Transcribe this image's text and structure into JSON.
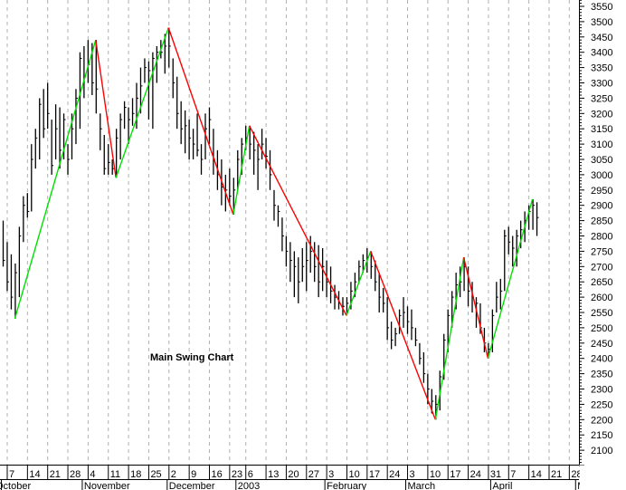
{
  "chart_data": {
    "type": "ohlc-swing",
    "title": "",
    "annotation": "Main Swing Chart",
    "ylim": [
      2100,
      3550
    ],
    "y_ticks": [
      2100,
      2150,
      2200,
      2250,
      2300,
      2350,
      2400,
      2450,
      2500,
      2550,
      2600,
      2650,
      2700,
      2750,
      2800,
      2850,
      2900,
      2950,
      3000,
      3050,
      3100,
      3150,
      3200,
      3250,
      3300,
      3350,
      3400,
      3450,
      3500,
      3550
    ],
    "grid": "vertical-dashed",
    "colors": {
      "up_swing": "#00e000",
      "down_swing": "#ff0000",
      "bars": "#000000",
      "grid": "#b0b0b0"
    },
    "week_labels": [
      {
        "label": "7",
        "day": 0
      },
      {
        "label": "14",
        "day": 5
      },
      {
        "label": "21",
        "day": 10
      },
      {
        "label": "28",
        "day": 15
      },
      {
        "label": "4",
        "day": 20
      },
      {
        "label": "11",
        "day": 25
      },
      {
        "label": "18",
        "day": 30
      },
      {
        "label": "25",
        "day": 35
      },
      {
        "label": "2",
        "day": 40
      },
      {
        "label": "9",
        "day": 45
      },
      {
        "label": "16",
        "day": 50
      },
      {
        "label": "23",
        "day": 55
      },
      {
        "label": "6",
        "day": 59
      },
      {
        "label": "13",
        "day": 64
      },
      {
        "label": "20",
        "day": 69
      },
      {
        "label": "27",
        "day": 74
      },
      {
        "label": "3",
        "day": 79
      },
      {
        "label": "10",
        "day": 84
      },
      {
        "label": "17",
        "day": 89
      },
      {
        "label": "24",
        "day": 94
      },
      {
        "label": "3",
        "day": 99
      },
      {
        "label": "10",
        "day": 104
      },
      {
        "label": "17",
        "day": 109
      },
      {
        "label": "24",
        "day": 114
      },
      {
        "label": "31",
        "day": 119
      },
      {
        "label": "7",
        "day": 124
      },
      {
        "label": "14",
        "day": 129
      },
      {
        "label": "21",
        "day": 134
      },
      {
        "label": "28",
        "day": 139
      }
    ],
    "month_labels": [
      {
        "label": "October",
        "day": -1
      },
      {
        "label": "November",
        "day": 19
      },
      {
        "label": "December",
        "day": 40
      },
      {
        "label": "2003",
        "day": 57
      },
      {
        "label": "February",
        "day": 79
      },
      {
        "label": "March",
        "day": 99
      },
      {
        "label": "April",
        "day": 120
      },
      {
        "label": "May",
        "day": 141
      }
    ],
    "swing_points": [
      {
        "bar": 3,
        "price": 2530
      },
      {
        "bar": 23,
        "price": 3440
      },
      {
        "bar": 28,
        "price": 2990
      },
      {
        "bar": 41,
        "price": 3480
      },
      {
        "bar": 57,
        "price": 2870
      },
      {
        "bar": 61,
        "price": 3160
      },
      {
        "bar": 85,
        "price": 2540
      },
      {
        "bar": 91,
        "price": 2750
      },
      {
        "bar": 107,
        "price": 2200
      },
      {
        "bar": 114,
        "price": 2730
      },
      {
        "bar": 120,
        "price": 2400
      },
      {
        "bar": 131,
        "price": 2920
      }
    ],
    "bars_hlc": [
      [
        2850,
        2700,
        2720
      ],
      [
        2780,
        2620,
        2650
      ],
      [
        2740,
        2560,
        2600
      ],
      [
        2710,
        2530,
        2680
      ],
      [
        2830,
        2600,
        2800
      ],
      [
        2930,
        2780,
        2900
      ],
      [
        2940,
        2860,
        2880
      ],
      [
        3100,
        2880,
        3050
      ],
      [
        3150,
        3020,
        3120
      ],
      [
        3250,
        3050,
        3230
      ],
      [
        3280,
        3120,
        3150
      ],
      [
        3300,
        3150,
        3200
      ],
      [
        3180,
        3000,
        3030
      ],
      [
        3230,
        3050,
        3150
      ],
      [
        3220,
        3020,
        3080
      ],
      [
        3200,
        3050,
        3180
      ],
      [
        3100,
        3000,
        3050
      ],
      [
        3200,
        3050,
        3150
      ],
      [
        3280,
        3100,
        3250
      ],
      [
        3400,
        3150,
        3380
      ],
      [
        3420,
        3250,
        3320
      ],
      [
        3440,
        3300,
        3360
      ],
      [
        3430,
        3260,
        3300
      ],
      [
        3440,
        3200,
        3280
      ],
      [
        3200,
        3080,
        3150
      ],
      [
        3130,
        3000,
        3020
      ],
      [
        3100,
        3000,
        3040
      ],
      [
        3050,
        3000,
        3020
      ],
      [
        3150,
        2990,
        3120
      ],
      [
        3200,
        3050,
        3180
      ],
      [
        3240,
        3150,
        3220
      ],
      [
        3220,
        3100,
        3180
      ],
      [
        3250,
        3160,
        3200
      ],
      [
        3300,
        3150,
        3250
      ],
      [
        3350,
        3200,
        3290
      ],
      [
        3380,
        3300,
        3350
      ],
      [
        3370,
        3180,
        3340
      ],
      [
        3400,
        3150,
        3380
      ],
      [
        3420,
        3300,
        3400
      ],
      [
        3440,
        3380,
        3400
      ],
      [
        3460,
        3330,
        3420
      ],
      [
        3480,
        3350,
        3420
      ],
      [
        3380,
        3250,
        3300
      ],
      [
        3320,
        3150,
        3200
      ],
      [
        3240,
        3100,
        3150
      ],
      [
        3210,
        3070,
        3160
      ],
      [
        3180,
        3050,
        3120
      ],
      [
        3150,
        3050,
        3100
      ],
      [
        3200,
        3060,
        3080
      ],
      [
        3100,
        3000,
        3050
      ],
      [
        3200,
        3050,
        3150
      ],
      [
        3220,
        3100,
        3180
      ],
      [
        3150,
        3000,
        3050
      ],
      [
        3080,
        2950,
        3000
      ],
      [
        3050,
        2900,
        2960
      ],
      [
        3000,
        2880,
        2950
      ],
      [
        3020,
        2900,
        2930
      ],
      [
        2990,
        2870,
        2950
      ],
      [
        3080,
        2950,
        3050
      ],
      [
        3120,
        3000,
        3100
      ],
      [
        3160,
        3080,
        3120
      ],
      [
        3160,
        3050,
        3100
      ],
      [
        3140,
        3000,
        3080
      ],
      [
        3100,
        2950,
        3050
      ],
      [
        3150,
        3050,
        3100
      ],
      [
        3120,
        3020,
        3060
      ],
      [
        3080,
        2950,
        3000
      ],
      [
        2950,
        2850,
        2900
      ],
      [
        2900,
        2830,
        2880
      ],
      [
        2860,
        2750,
        2800
      ],
      [
        2800,
        2700,
        2750
      ],
      [
        2780,
        2650,
        2720
      ],
      [
        2750,
        2600,
        2700
      ],
      [
        2730,
        2580,
        2650
      ],
      [
        2760,
        2650,
        2700
      ],
      [
        2780,
        2620,
        2720
      ],
      [
        2800,
        2680,
        2750
      ],
      [
        2780,
        2650,
        2700
      ],
      [
        2770,
        2600,
        2650
      ],
      [
        2760,
        2620,
        2700
      ],
      [
        2720,
        2600,
        2650
      ],
      [
        2700,
        2580,
        2620
      ],
      [
        2640,
        2560,
        2600
      ],
      [
        2620,
        2560,
        2580
      ],
      [
        2600,
        2540,
        2570
      ],
      [
        2600,
        2540,
        2580
      ],
      [
        2650,
        2560,
        2620
      ],
      [
        2680,
        2600,
        2650
      ],
      [
        2720,
        2650,
        2700
      ],
      [
        2740,
        2680,
        2720
      ],
      [
        2760,
        2680,
        2730
      ],
      [
        2750,
        2660,
        2700
      ],
      [
        2720,
        2620,
        2650
      ],
      [
        2680,
        2550,
        2600
      ],
      [
        2630,
        2550,
        2580
      ],
      [
        2600,
        2460,
        2500
      ],
      [
        2520,
        2430,
        2460
      ],
      [
        2500,
        2440,
        2480
      ],
      [
        2560,
        2480,
        2540
      ],
      [
        2600,
        2500,
        2550
      ],
      [
        2570,
        2480,
        2520
      ],
      [
        2560,
        2460,
        2500
      ],
      [
        2500,
        2440,
        2460
      ],
      [
        2450,
        2380,
        2400
      ],
      [
        2420,
        2320,
        2350
      ],
      [
        2350,
        2250,
        2300
      ],
      [
        2300,
        2220,
        2260
      ],
      [
        2280,
        2200,
        2250
      ],
      [
        2360,
        2230,
        2340
      ],
      [
        2480,
        2330,
        2460
      ],
      [
        2560,
        2420,
        2540
      ],
      [
        2620,
        2500,
        2600
      ],
      [
        2680,
        2560,
        2640
      ],
      [
        2700,
        2600,
        2650
      ],
      [
        2730,
        2620,
        2700
      ],
      [
        2700,
        2570,
        2620
      ],
      [
        2650,
        2550,
        2600
      ],
      [
        2600,
        2500,
        2580
      ],
      [
        2580,
        2480,
        2500
      ],
      [
        2500,
        2420,
        2450
      ],
      [
        2450,
        2400,
        2430
      ],
      [
        2560,
        2420,
        2540
      ],
      [
        2650,
        2550,
        2600
      ],
      [
        2660,
        2560,
        2620
      ],
      [
        2820,
        2620,
        2800
      ],
      [
        2830,
        2740,
        2780
      ],
      [
        2800,
        2700,
        2760
      ],
      [
        2820,
        2700,
        2800
      ],
      [
        2850,
        2760,
        2820
      ],
      [
        2880,
        2780,
        2850
      ],
      [
        2900,
        2820,
        2880
      ],
      [
        2920,
        2820,
        2900
      ],
      [
        2910,
        2800,
        2860
      ]
    ]
  }
}
